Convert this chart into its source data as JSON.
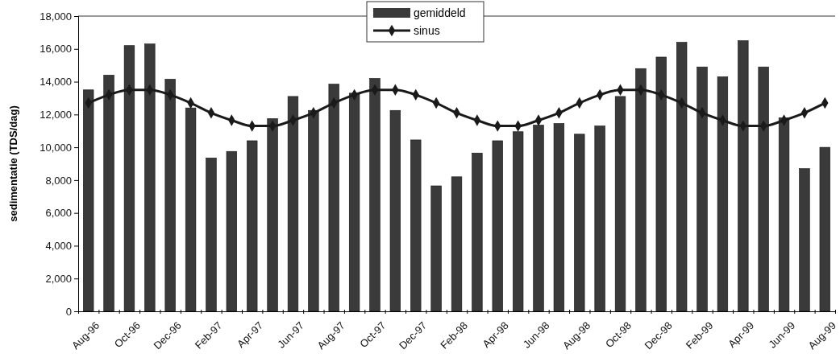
{
  "chart_data": {
    "type": "bar",
    "ylabel": "sedimentatie (TDS/dag)",
    "categories": [
      "Aug-96",
      null,
      "Oct-96",
      null,
      "Dec-96",
      null,
      "Feb-97",
      null,
      "Apr-97",
      null,
      "Jun-97",
      null,
      "Aug-97",
      null,
      "Oct-97",
      null,
      "Dec-97",
      null,
      "Feb-98",
      null,
      "Apr-98",
      null,
      "Jun-98",
      null,
      "Aug-98",
      null,
      "Oct-98",
      null,
      "Dec-98",
      null,
      "Feb-99",
      null,
      "Apr-99",
      null,
      "Jun-99",
      null,
      "Aug-99"
    ],
    "series": [
      {
        "name": "gemiddeld",
        "color": "#3a3a3a",
        "values": [
          13500,
          14400,
          16200,
          16300,
          14150,
          12400,
          9350,
          9750,
          10400,
          11750,
          13100,
          12250,
          13850,
          13300,
          14200,
          12250,
          10450,
          7650,
          8200,
          9650,
          10400,
          10950,
          11350,
          11450,
          10800,
          11300,
          13100,
          14800,
          15500,
          16400,
          14900,
          14300,
          16500,
          14900,
          11800,
          8700,
          10000
        ]
      },
      {
        "name": "sinus",
        "type": "line",
        "color": "#1a1a1a",
        "marker": "diamond",
        "values": [
          12700,
          13200,
          13500,
          13500,
          13200,
          12700,
          12100,
          11650,
          11300,
          11300,
          11650,
          12100,
          12700,
          13200,
          13500,
          13500,
          13200,
          12700,
          12100,
          11650,
          11300,
          11300,
          11650,
          12100,
          12700,
          13200,
          13500,
          13500,
          13200,
          12700,
          12100,
          11650,
          11300,
          11300,
          11650,
          12100,
          12700
        ]
      }
    ],
    "ylim": [
      0,
      18000
    ],
    "yticks": [
      {
        "value": 0,
        "label": "0"
      },
      {
        "value": 2000,
        "label": "2,000"
      },
      {
        "value": 4000,
        "label": "4,000"
      },
      {
        "value": 6000,
        "label": "6,000"
      },
      {
        "value": 8000,
        "label": "8,000"
      },
      {
        "value": 10000,
        "label": "10,000"
      },
      {
        "value": 12000,
        "label": "12,000"
      },
      {
        "value": 14000,
        "label": "14,000"
      },
      {
        "value": 16000,
        "label": "16,000"
      },
      {
        "value": 18000,
        "label": "18,000"
      }
    ],
    "legend": "top"
  }
}
